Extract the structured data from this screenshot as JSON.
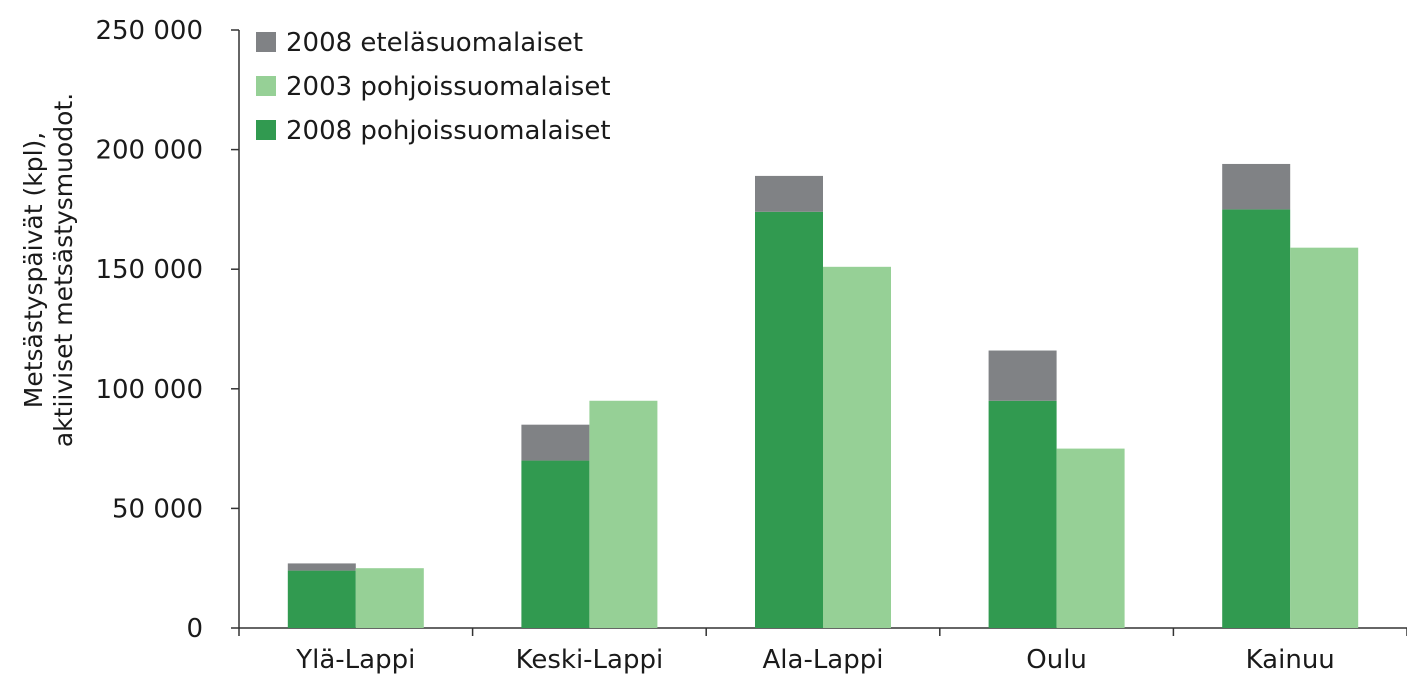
{
  "chart_data": {
    "type": "bar",
    "stacked_group": true,
    "title": "",
    "xlabel": "",
    "ylabel": [
      "Metsästyspäivät (kpl),",
      "aktiiviset metsästysmuodot."
    ],
    "categories": [
      "Ylä-Lappi",
      "Keski-Lappi",
      "Ala-Lappi",
      "Oulu",
      "Kainuu"
    ],
    "ylim": [
      0,
      250000
    ],
    "yticks": [
      0,
      50000,
      100000,
      150000,
      200000,
      250000
    ],
    "ytick_labels": [
      "0",
      "50 000",
      "100 000",
      "150 000",
      "200 000",
      "250 000"
    ],
    "series": [
      {
        "name": "2008 eteläsuomalaiset",
        "color": "#808285",
        "stack": "2008",
        "values": [
          3000,
          15000,
          15000,
          21000,
          19000
        ]
      },
      {
        "name": "2003 pohjoissuomalaiset",
        "color": "#96d096",
        "stack": "2003",
        "values": [
          25000,
          95000,
          151000,
          75000,
          159000
        ]
      },
      {
        "name": "2008 pohjoissuomalaiset",
        "color": "#319a50",
        "stack": "2008",
        "values": [
          24000,
          70000,
          174000,
          95000,
          175000
        ]
      }
    ],
    "legend_position": "top-left",
    "grid": false
  }
}
